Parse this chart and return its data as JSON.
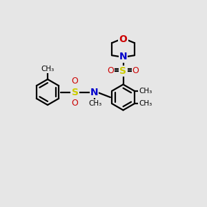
{
  "bg_color": "#e6e6e6",
  "atom_colors": {
    "C": "#000000",
    "N": "#0000cc",
    "O": "#cc0000",
    "S": "#cccc00"
  },
  "lw": 1.6,
  "ring_r": 0.62,
  "xlim": [
    0,
    10
  ],
  "ylim": [
    0,
    10
  ]
}
